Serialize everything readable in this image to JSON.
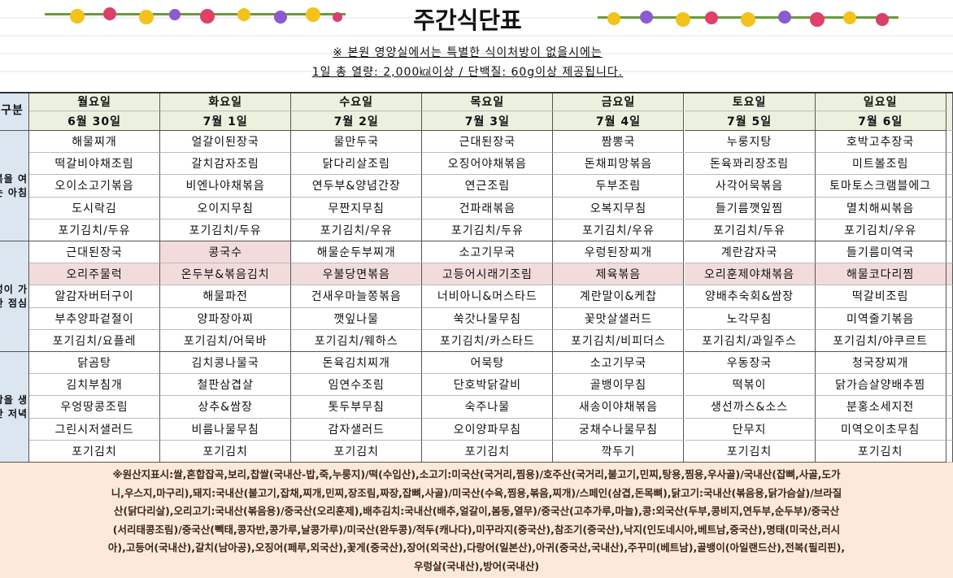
{
  "header": {
    "title": "주간식단표",
    "notice": [
      "※ 본원 영양실에서는 특별한 식이처방이 없을시에는",
      "1일 총 열량: 2,000㎉이상 / 단백질: 60g이상 제공됩니다."
    ]
  },
  "table": {
    "corner_label": "구분",
    "days": [
      "월요일",
      "화요일",
      "수요일",
      "목요일",
      "금요일",
      "토요일",
      "일요일"
    ],
    "dates": [
      "6월 30일",
      "7월 1일",
      "7월 2일",
      "7월 3일",
      "7월 4일",
      "7월 5일",
      "7월 6일"
    ],
    "meals": [
      {
        "label": "행복을 여는 아침",
        "rows": [
          [
            "해물찌개",
            "얼갈이된장국",
            "물만두국",
            "근대된장국",
            "짬뽕국",
            "누룽지탕",
            "호박고추장국"
          ],
          [
            "떡갈비야채조림",
            "갈치감자조림",
            "닭다리살조림",
            "오징어야채볶음",
            "돈채피망볶음",
            "돈육꽈리장조림",
            "미트볼조림"
          ],
          [
            "오이소고기볶음",
            "비엔나야채볶음",
            "연두부&양념간장",
            "연근조림",
            "두부조림",
            "사각어묵볶음",
            "토마토스크램블에그"
          ],
          [
            "도시락김",
            "오이지무침",
            "무짠지무침",
            "건파래볶음",
            "오복지무침",
            "들기름깻잎찜",
            "멸치해씨볶음"
          ],
          [
            "포기김치/두유",
            "포기김치/두유",
            "포기김치/우유",
            "포기김치/두유",
            "포기김치/우유",
            "포기김치/두유",
            "포기김치/우유"
          ]
        ]
      },
      {
        "label": "정성이 가득한 점심",
        "rows": [
          [
            "근대된장국",
            "콩국수",
            "해물순두부찌개",
            "소고기무국",
            "우렁된장찌개",
            "계란감자국",
            "들기름미역국"
          ],
          [
            "오리주물럭",
            "온두부&볶음김치",
            "우불당면볶음",
            "고등어시래기조림",
            "제육볶음",
            "오리훈제야채볶음",
            "해물코다리찜"
          ],
          [
            "알감자버터구이",
            "해물파전",
            "건새우마늘쫑볶음",
            "너비아니&머스타드",
            "계란말이&케찹",
            "양배추숙회&쌈장",
            "떡갈비조림"
          ],
          [
            "부추양파겉절이",
            "양파장아찌",
            "깻잎나물",
            "쑥갓나물무침",
            "꽃맛살샐러드",
            "노각무침",
            "미역줄기볶음"
          ],
          [
            "포기김치/요플레",
            "포기김치/어묵바",
            "포기김치/웨하스",
            "포기김치/카스타드",
            "포기김치/비피더스",
            "포기김치/과일주스",
            "포기김치/야쿠르트"
          ]
        ]
      },
      {
        "label": "건강을 생각한 저녁",
        "rows": [
          [
            "닭곰탕",
            "김치콩나물국",
            "돈육김치찌개",
            "어묵탕",
            "소고기무국",
            "우동장국",
            "청국장찌개"
          ],
          [
            "김치부침개",
            "철판삼겹살",
            "임연수조림",
            "단호박닭갈비",
            "골뱅이무침",
            "떡볶이",
            "닭가슴살양배추찜"
          ],
          [
            "우엉땅콩조림",
            "상추&쌈장",
            "톳두부무침",
            "숙주나물",
            "새송이야채볶음",
            "생선까스&소스",
            "분홍소세지전"
          ],
          [
            "그린시저샐러드",
            "비름나물무침",
            "감자샐러드",
            "오이양파무침",
            "궁채수나물무침",
            "단무지",
            "미역오이초무침"
          ],
          [
            "포기김치",
            "포기김치",
            "포기김치",
            "포기김치",
            "깍두기",
            "포기김치",
            "포기김치"
          ]
        ]
      }
    ]
  },
  "footer": {
    "lines": [
      "※원산지표시:쌀,혼합잡곡,보리,찹쌀(국내산-밥,죽,누룽지)/떡(수입산),소고기:미국산(국거리,찜용)/호주산(국거리,불고기,민찌,탕용,찜용,우사골)/국내산(잡뼈,사골,도가",
      "니,우스지,마구리),돼지:국내산(불고기,잡채,찌개,민찌,장조림,짜장,잡뼈,사골)/미국산(수육,찜용,볶음,찌개)/스페인(삼겹,돈목뼈),닭고기:국내산(볶음용,닭가슴살)/브라질",
      "산(닭다리살),오리고기:국내산(볶음용)/중국산(오리훈제),배추김치:국내산(배추,얼갈이,봄동,열무)/중국산(고추가루,마늘),콩:외국산(두부,콩비지,연두부,순두부)/중국산",
      "(서리태콩조림)/중국산(빽태,콩자반,콩가루,날콩가루)/미국산(완두콩)/적두(캐나다),미꾸라지(중국산),참조기(중국산),낙지(인도네시아,베트남,중국산),명태(미국산,러시",
      "아),고등어(국내산),갈치(남아공),오징어(페루,외국산),꽃게(중국산),장어(외국산),다랑어(일본산),아귀(중국산,국내산),주꾸미(베트남),골뱅이(아일랜드산),전복(필리핀),",
      "우렁살(국내산),방어(국내산)"
    ]
  }
}
